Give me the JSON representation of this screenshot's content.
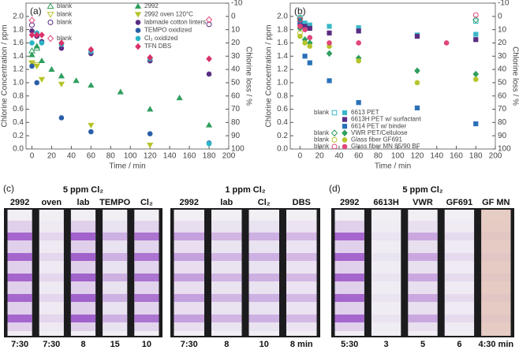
{
  "chart_data": [
    {
      "type": "scatter",
      "panel_label": "(a)",
      "xlabel": "Time / min",
      "ylabel": "Chlorine Concentration / ppm",
      "y2label": "Chlorine loss / %",
      "xlim": [
        -6,
        200
      ],
      "xticks": [
        0,
        20,
        40,
        60,
        80,
        100,
        120,
        140,
        160,
        180,
        200
      ],
      "ylim": [
        0,
        2.2
      ],
      "yticks": [
        {
          "value": 0,
          "label": "0.0"
        },
        {
          "value": 0.2,
          "label": "0.2"
        },
        {
          "value": 0.4,
          "label": "0.4"
        },
        {
          "value": 0.6,
          "label": "0.6"
        },
        {
          "value": 0.8,
          "label": "0.8"
        },
        {
          "value": 1,
          "label": "1.0"
        },
        {
          "value": 1.2,
          "label": "1.2"
        },
        {
          "value": 1.4,
          "label": "1.4"
        },
        {
          "value": 1.6,
          "label": "1.6"
        },
        {
          "value": 1.8,
          "label": "1.8"
        },
        {
          "value": 2,
          "label": "2.0"
        }
      ],
      "y2lim": [
        100,
        -10
      ],
      "y2ticks": [
        -10,
        0,
        10,
        20,
        30,
        40,
        50,
        60,
        70,
        80,
        90,
        100
      ],
      "series": [
        {
          "name": "blank",
          "color": "#2e9e5e",
          "marker": "triangle",
          "filled": false,
          "x": [
            0,
            5
          ],
          "values": [
            1.48,
            1.52
          ]
        },
        {
          "name": "blank",
          "color": "#b5c42a",
          "marker": "down",
          "filled": false,
          "x": [
            0,
            5
          ],
          "values": [
            1.3,
            1.27
          ]
        },
        {
          "name": "blank",
          "color": "#5a2d82",
          "marker": "circle",
          "filled": false,
          "x": [
            0,
            180
          ],
          "values": [
            1.87,
            1.88
          ]
        },
        {
          "name": "blank",
          "color": "#e0457b",
          "marker": "diamond",
          "filled": false,
          "x": [
            0,
            180
          ],
          "values": [
            1.94,
            1.95
          ]
        },
        {
          "name": "2992",
          "color": "#2e9e5e",
          "marker": "triangle",
          "filled": true,
          "x": [
            0,
            5,
            10,
            20,
            30,
            45,
            60,
            90,
            120,
            150,
            180
          ],
          "values": [
            1.42,
            1.55,
            1.33,
            1.2,
            1.1,
            1.03,
            0.96,
            0.86,
            0.6,
            0.77,
            0.36
          ]
        },
        {
          "name": "2992 oven 120°C",
          "color": "#b5c42a",
          "marker": "down",
          "filled": true,
          "x": [
            0,
            5,
            10,
            30,
            60,
            120
          ],
          "values": [
            1.3,
            1.25,
            1.05,
            0.98,
            0.36,
            0.06
          ]
        },
        {
          "name": "labmade cotton linters",
          "color": "#5a2d82",
          "marker": "circle",
          "filled": true,
          "x": [
            0,
            5,
            10,
            30,
            60,
            120,
            180
          ],
          "values": [
            1.78,
            1.7,
            1.62,
            1.52,
            1.44,
            1.33,
            1.13
          ]
        },
        {
          "name": "TEMPO oxidized",
          "color": "#2a5ea8",
          "marker": "circle",
          "filled": true,
          "x": [
            0,
            5,
            30,
            60,
            120,
            180
          ],
          "values": [
            1.25,
            1.0,
            0.47,
            0.26,
            0.23,
            0.09
          ]
        },
        {
          "name": "Cl₂ oxidized",
          "color": "#2ab5c6",
          "marker": "circle",
          "filled": true,
          "x": [
            0,
            5,
            10,
            30,
            60,
            120,
            180
          ],
          "values": [
            1.6,
            1.75,
            1.6,
            1.58,
            1.47,
            1.36,
            0.08
          ]
        },
        {
          "name": "TFN DBS",
          "color": "#d9326a",
          "marker": "diamond",
          "filled": true,
          "x": [
            0,
            5,
            10,
            30,
            60,
            120,
            180
          ],
          "values": [
            1.72,
            1.72,
            1.72,
            1.6,
            1.5,
            1.38,
            1.36
          ]
        }
      ]
    },
    {
      "type": "scatter",
      "panel_label": "(b)",
      "xlabel": "Time / min",
      "ylabel": "Chlorine Concentration / ppm",
      "y2label": "Chlorine loss / %",
      "xlim": [
        -10,
        200
      ],
      "xticks": [
        0,
        20,
        40,
        60,
        80,
        100,
        120,
        140,
        160,
        180,
        200
      ],
      "ylim": [
        0,
        2.2
      ],
      "yticks": [
        {
          "value": 0,
          "label": "0.0"
        },
        {
          "value": 0.2,
          "label": "0.2"
        },
        {
          "value": 0.4,
          "label": "0.4"
        },
        {
          "value": 0.6,
          "label": "0.6"
        },
        {
          "value": 0.8,
          "label": "0.8"
        },
        {
          "value": 1,
          "label": "1.0"
        },
        {
          "value": 1.2,
          "label": "1.2"
        },
        {
          "value": 1.4,
          "label": "1.4"
        },
        {
          "value": 1.6,
          "label": "1.6"
        },
        {
          "value": 1.8,
          "label": "1.8"
        },
        {
          "value": 2,
          "label": "2.0"
        }
      ],
      "y2lim": [
        100,
        -10
      ],
      "y2ticks": [
        -10,
        0,
        10,
        20,
        30,
        40,
        50,
        60,
        70,
        80,
        90,
        100
      ],
      "series": [
        {
          "name": "blank",
          "color": "#3ab8c8",
          "marker": "square",
          "filled": false,
          "x": [
            0,
            180
          ],
          "values": [
            1.98,
            1.93
          ]
        },
        {
          "name": "6613 PET",
          "color": "#3ab8c8",
          "marker": "square",
          "filled": true,
          "x": [
            0,
            5,
            10,
            30,
            60,
            120,
            180
          ],
          "values": [
            1.95,
            1.9,
            1.87,
            1.85,
            1.83,
            1.72,
            1.73
          ]
        },
        {
          "name": "6613H PET w/ surfactant",
          "color": "#5a2d82",
          "marker": "square",
          "filled": true,
          "x": [
            0,
            5,
            10,
            30,
            60,
            120,
            180
          ],
          "values": [
            1.9,
            1.85,
            1.82,
            1.75,
            1.78,
            1.7,
            1.65
          ]
        },
        {
          "name": "6614 PET w/ binder",
          "color": "#2a70b8",
          "marker": "square",
          "filled": true,
          "x": [
            0,
            5,
            10,
            30,
            60,
            120,
            180
          ],
          "values": [
            1.93,
            1.4,
            1.3,
            1.03,
            0.7,
            0.62,
            0.38
          ]
        },
        {
          "name": "blank",
          "color": "#2e9e5e",
          "marker": "diamond",
          "filled": false,
          "x": [
            0,
            180
          ],
          "values": [
            1.97,
            1.95
          ]
        },
        {
          "name": "VWR PET/Cellulose",
          "color": "#2e9e5e",
          "marker": "diamond",
          "filled": true,
          "x": [
            0,
            5,
            10,
            30,
            60,
            120,
            180
          ],
          "values": [
            1.82,
            1.65,
            1.6,
            1.44,
            1.37,
            1.18,
            1.13
          ]
        },
        {
          "name": "blank",
          "color": "#b5c42a",
          "marker": "circle",
          "filled": false,
          "x": [
            0
          ],
          "values": [
            1.75
          ]
        },
        {
          "name": "Glass fiber GF691",
          "color": "#b5c42a",
          "marker": "circle",
          "filled": true,
          "x": [
            0,
            5,
            10,
            30,
            60,
            120,
            180
          ],
          "values": [
            1.7,
            1.6,
            1.55,
            1.55,
            1.33,
            1.0,
            1.05
          ]
        },
        {
          "name": "blank",
          "color": "#e0457b",
          "marker": "circle",
          "filled": false,
          "x": [
            0,
            180
          ],
          "values": [
            1.95,
            2.02
          ]
        },
        {
          "name": "Glass fiber MN 85/90 BF",
          "color": "#e0457b",
          "marker": "circle",
          "filled": true,
          "x": [
            0,
            5,
            10,
            30,
            60,
            150
          ],
          "values": [
            1.85,
            1.8,
            1.68,
            1.6,
            1.6,
            1.6
          ]
        }
      ]
    }
  ],
  "photo_panels": [
    {
      "label": "(c)",
      "groups": [
        {
          "title": "5 ppm Cl₂",
          "strips": [
            {
              "name": "2992",
              "time": "7:30"
            },
            {
              "name": "oven",
              "time": "7:30"
            },
            {
              "name": "lab",
              "time": "8"
            },
            {
              "name": "TEMPO",
              "time": "15"
            },
            {
              "name": "Cl₂",
              "time": "10"
            }
          ]
        },
        {
          "title": "1 ppm Cl₂",
          "strips": [
            {
              "name": "2992",
              "time": "7:30"
            },
            {
              "name": "lab",
              "time": "8"
            },
            {
              "name": "Cl₂",
              "time": "10"
            },
            {
              "name": "DBS",
              "time": "8 min"
            }
          ]
        }
      ]
    },
    {
      "label": "(d)",
      "groups": [
        {
          "title": "5 ppm Cl₂",
          "strips": [
            {
              "name": "2992",
              "time": "5:30"
            },
            {
              "name": "6613H",
              "time": "3"
            },
            {
              "name": "VWR",
              "time": "5"
            },
            {
              "name": "GF691",
              "time": "6"
            },
            {
              "name": "GF MN",
              "time": "4:30 min"
            }
          ]
        }
      ]
    }
  ]
}
